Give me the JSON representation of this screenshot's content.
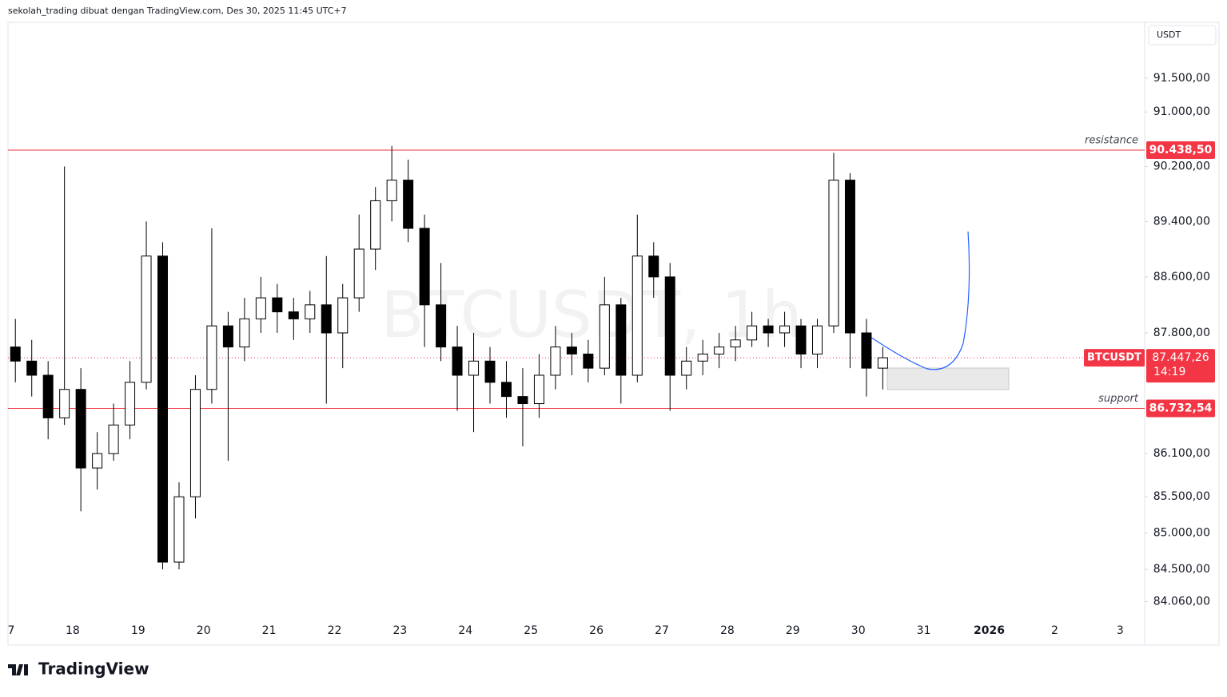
{
  "header": {
    "attribution": "sekolah_trading dibuat dengan TradingView.com, Des 30, 2025 11:45 UTC+7",
    "currency": "USDT"
  },
  "footer": {
    "brand": "TradingView"
  },
  "chart_data": {
    "type": "candlestick",
    "watermark": "BTCUSDT, 1h",
    "log_scale": true,
    "ylim": [
      83470,
      92330
    ],
    "yticks": [
      {
        "value": 91500,
        "label": "91.500,00"
      },
      {
        "value": 91000,
        "label": "91.000,00"
      },
      {
        "value": 90200,
        "label": "90.200,00"
      },
      {
        "value": 89400,
        "label": "89.400,00"
      },
      {
        "value": 88600,
        "label": "88.600,00"
      },
      {
        "value": 87800,
        "label": "87.800,00"
      },
      {
        "value": 86100,
        "label": "86.100,00"
      },
      {
        "value": 85500,
        "label": "85.500,00"
      },
      {
        "value": 85000,
        "label": "85.000,00"
      },
      {
        "value": 84500,
        "label": "84.500,00"
      },
      {
        "value": 84060,
        "label": "84.060,00"
      }
    ],
    "x_labels": [
      "7",
      "18",
      "19",
      "20",
      "21",
      "22",
      "23",
      "24",
      "25",
      "26",
      "27",
      "28",
      "29",
      "30",
      "31",
      "2026",
      "2",
      "3"
    ],
    "up_color": "#ffffff",
    "down_color": "#000000",
    "level_color": "#f23645",
    "open": [
      87600,
      87400,
      87200,
      86600,
      87000,
      85900,
      86100,
      86500,
      87100,
      88900,
      84600,
      85500,
      87000,
      87900,
      87600,
      88000,
      88300,
      88100,
      88000,
      88200,
      87800,
      88300,
      89000,
      89700,
      90000,
      89300,
      88200,
      87600,
      87200,
      87400,
      87100,
      86900,
      86800,
      87200,
      87600,
      87500,
      87300,
      88200,
      87200,
      88900,
      88600,
      87200,
      87400,
      87500,
      87600,
      87700,
      87900,
      87800,
      87900,
      87500,
      87900,
      90000,
      87800,
      87300
    ],
    "high": [
      88000,
      87700,
      87400,
      90200,
      87300,
      86400,
      86800,
      87400,
      89400,
      89100,
      85700,
      87200,
      89300,
      88100,
      88300,
      88600,
      88500,
      88300,
      88400,
      88900,
      88500,
      89500,
      89900,
      90500,
      90300,
      89500,
      88800,
      87900,
      87800,
      87600,
      87400,
      87300,
      87500,
      87900,
      87800,
      87700,
      88600,
      88300,
      89500,
      89100,
      88800,
      87600,
      87700,
      87800,
      87900,
      88100,
      88000,
      88100,
      88000,
      88000,
      90400,
      90100,
      88000,
      87600
    ],
    "low": [
      87100,
      86900,
      86300,
      86500,
      85300,
      85600,
      86000,
      86300,
      87000,
      84500,
      84500,
      85200,
      86800,
      86000,
      87400,
      87800,
      87800,
      87700,
      87800,
      86800,
      87300,
      88100,
      88700,
      89400,
      89100,
      87600,
      87400,
      86700,
      86400,
      86800,
      86600,
      86200,
      86600,
      87000,
      87200,
      87100,
      87200,
      86800,
      87100,
      88300,
      86700,
      87000,
      87200,
      87300,
      87400,
      87600,
      87600,
      87600,
      87300,
      87300,
      87800,
      87300,
      86900,
      87000
    ],
    "close": [
      87400,
      87200,
      86600,
      87000,
      85900,
      86100,
      86500,
      87100,
      88900,
      84600,
      85500,
      87000,
      87900,
      87600,
      88000,
      88300,
      88100,
      88000,
      88200,
      87800,
      88300,
      89000,
      89700,
      90000,
      89300,
      88200,
      87600,
      87200,
      87400,
      87100,
      86900,
      86800,
      87200,
      87600,
      87500,
      87300,
      88200,
      87200,
      88900,
      88600,
      87200,
      87400,
      87500,
      87600,
      87700,
      87900,
      87800,
      87900,
      87500,
      87900,
      90000,
      87800,
      87300,
      87447.26
    ],
    "levels": [
      {
        "name": "resistance",
        "value": 90438.5,
        "label": "90.438,50"
      },
      {
        "name": "support",
        "value": 86732.54,
        "label": "86.732,54"
      }
    ],
    "last": {
      "name": "BTCUSDT",
      "value": 87447.26,
      "label": "87.447,26",
      "countdown": "14:19"
    }
  }
}
